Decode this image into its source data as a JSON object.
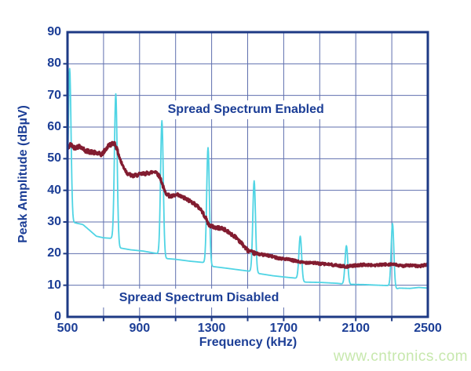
{
  "watermark": {
    "text": "www.cntronics.com",
    "color": "#c7e8ad"
  },
  "chart_data": {
    "type": "line",
    "title": "",
    "xlabel": "Frequency (kHz)",
    "ylabel": "Peak Amplitude (dBµV)",
    "xlim": [
      500,
      2500
    ],
    "ylim": [
      0,
      90
    ],
    "x_grid_step": 200,
    "y_grid_step": 10,
    "grid": true,
    "legend_position": "none",
    "x_tick_labels": [
      "500",
      "900",
      "1300",
      "1700",
      "2100",
      "2500"
    ],
    "y_tick_labels": [
      "90",
      "80",
      "70",
      "60",
      "50",
      "40",
      "30",
      "20",
      "10",
      "0"
    ],
    "colors": {
      "axis": "#1e3a85",
      "grid": "#5f6fae",
      "text": "#1c3e96"
    },
    "annotations": [
      {
        "text": "Spread Spectrum Enabled",
        "x_khz": 1490,
        "y_db": 65.5
      },
      {
        "text": "Spread Spectrum Disabled",
        "x_khz": 1230,
        "y_db": 6
      }
    ],
    "series": [
      {
        "name": "Spread Spectrum Enabled",
        "color": "#821c30",
        "style": "noisy-line",
        "points": [
          [
            500,
            53
          ],
          [
            515,
            54.5
          ],
          [
            540,
            53.5
          ],
          [
            570,
            54
          ],
          [
            600,
            52.5
          ],
          [
            640,
            52
          ],
          [
            690,
            51.3
          ],
          [
            730,
            54.3
          ],
          [
            762,
            55
          ],
          [
            780,
            52
          ],
          [
            800,
            48.5
          ],
          [
            830,
            45.5
          ],
          [
            860,
            44.5
          ],
          [
            900,
            45
          ],
          [
            950,
            45.5
          ],
          [
            990,
            46
          ],
          [
            1015,
            44
          ],
          [
            1040,
            39.5
          ],
          [
            1070,
            38
          ],
          [
            1110,
            38.5
          ],
          [
            1150,
            37.5
          ],
          [
            1200,
            36
          ],
          [
            1240,
            34
          ],
          [
            1265,
            31.5
          ],
          [
            1285,
            29
          ],
          [
            1320,
            28.2
          ],
          [
            1360,
            28
          ],
          [
            1400,
            26.5
          ],
          [
            1440,
            25
          ],
          [
            1470,
            23
          ],
          [
            1500,
            21
          ],
          [
            1530,
            20.2
          ],
          [
            1570,
            19.8
          ],
          [
            1620,
            19.3
          ],
          [
            1670,
            18.6
          ],
          [
            1720,
            18.2
          ],
          [
            1770,
            17.6
          ],
          [
            1800,
            17.2
          ],
          [
            1850,
            17.2
          ],
          [
            1900,
            16.8
          ],
          [
            1950,
            16.6
          ],
          [
            2000,
            16.2
          ],
          [
            2050,
            15.9
          ],
          [
            2100,
            16.3
          ],
          [
            2150,
            16.5
          ],
          [
            2200,
            16.3
          ],
          [
            2250,
            16.5
          ],
          [
            2300,
            16.7
          ],
          [
            2350,
            16.1
          ],
          [
            2400,
            16.3
          ],
          [
            2450,
            16
          ],
          [
            2500,
            16.5
          ]
        ]
      },
      {
        "name": "Spread Spectrum Disabled",
        "color": "#4fd4e4",
        "style": "spiky-line",
        "baseline": [
          [
            500,
            30.5
          ],
          [
            520,
            30
          ],
          [
            560,
            29.5
          ],
          [
            585,
            29.2
          ],
          [
            620,
            27.5
          ],
          [
            660,
            25.5
          ],
          [
            700,
            25
          ],
          [
            750,
            24.8
          ],
          [
            790,
            21.8
          ],
          [
            850,
            21.2
          ],
          [
            920,
            20.8
          ],
          [
            1000,
            20
          ],
          [
            1035,
            18.5
          ],
          [
            1100,
            18.2
          ],
          [
            1180,
            17.6
          ],
          [
            1255,
            17.2
          ],
          [
            1295,
            16
          ],
          [
            1380,
            15.4
          ],
          [
            1460,
            14.8
          ],
          [
            1515,
            14.4
          ],
          [
            1550,
            13.8
          ],
          [
            1640,
            13
          ],
          [
            1720,
            12.5
          ],
          [
            1775,
            12.2
          ],
          [
            1805,
            11
          ],
          [
            1900,
            10.9
          ],
          [
            2000,
            10.6
          ],
          [
            2030,
            10.4
          ],
          [
            2065,
            10.3
          ],
          [
            2150,
            10.2
          ],
          [
            2230,
            10
          ],
          [
            2280,
            9.9
          ],
          [
            2310,
            8.5
          ],
          [
            2340,
            9.1
          ],
          [
            2400,
            9
          ],
          [
            2450,
            9.3
          ],
          [
            2500,
            9.1
          ]
        ],
        "spikes_khz_peak_dbuv": [
          [
            512,
            78.5
          ],
          [
            768,
            70.5
          ],
          [
            1024,
            62
          ],
          [
            1280,
            53.5
          ],
          [
            1536,
            43
          ],
          [
            1792,
            25.5
          ],
          [
            2048,
            22.5
          ],
          [
            2304,
            29.5
          ]
        ]
      }
    ]
  }
}
